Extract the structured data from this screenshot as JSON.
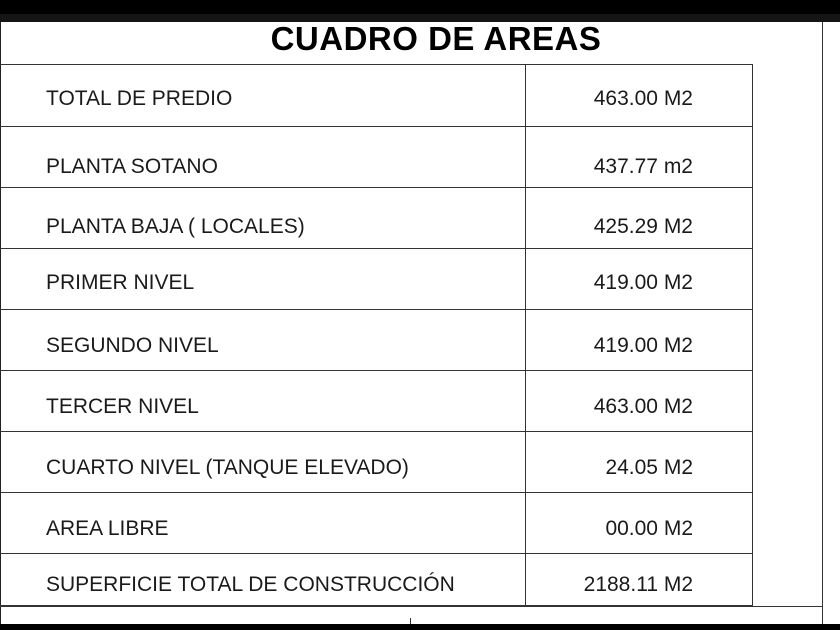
{
  "title": "CUADRO DE AREAS",
  "rows": [
    {
      "label": "TOTAL DE PREDIO",
      "value": "463.00 M2"
    },
    {
      "label": "PLANTA SOTANO",
      "value": "437.77 m2"
    },
    {
      "label": "PLANTA BAJA ( LOCALES)",
      "value": "425.29 M2"
    },
    {
      "label": "PRIMER NIVEL",
      "value": "419.00 M2"
    },
    {
      "label": "SEGUNDO NIVEL",
      "value": "419.00 M2"
    },
    {
      "label": "TERCER NIVEL",
      "value": "463.00 M2"
    },
    {
      "label": "CUARTO NIVEL (TANQUE ELEVADO)",
      "value": "24.05 M2"
    },
    {
      "label": "AREA LIBRE",
      "value": "00.00 M2"
    },
    {
      "label": "SUPERFICIE TOTAL DE CONSTRUCCIÓN",
      "value": "2188.11 M2"
    }
  ]
}
